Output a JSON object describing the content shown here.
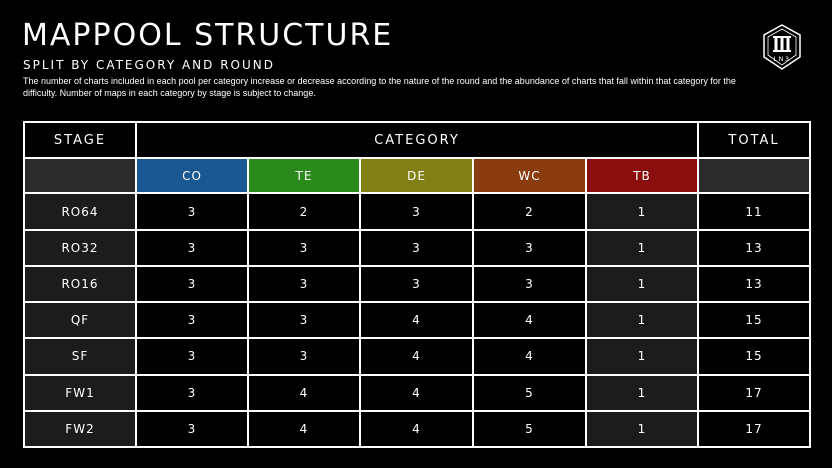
{
  "header": {
    "title": "MAPPOOL STRUCTURE",
    "subtitle": "SPLIT BY CATEGORY AND ROUND",
    "description": "The number of charts included in each pool per category increase or decrease according to the nature of the round and the abundance of charts that fall within that category for the difficulty. Number of maps in each category by stage is subject to change."
  },
  "logo": {
    "text": "LN3",
    "icon": "shield-logo-icon"
  },
  "table": {
    "stage_header": "STAGE",
    "category_header": "CATEGORY",
    "total_header": "TOTAL",
    "categories": [
      {
        "code": "CO",
        "color": "#1a5894"
      },
      {
        "code": "TE",
        "color": "#2b8a1c"
      },
      {
        "code": "DE",
        "color": "#828015"
      },
      {
        "code": "WC",
        "color": "#8a3c10"
      },
      {
        "code": "TB",
        "color": "#8a0e0e"
      }
    ],
    "rows": [
      {
        "stage": "RO64",
        "CO": "3",
        "TE": "2",
        "DE": "3",
        "WC": "2",
        "TB": "1",
        "total": "11"
      },
      {
        "stage": "RO32",
        "CO": "3",
        "TE": "3",
        "DE": "3",
        "WC": "3",
        "TB": "1",
        "total": "13"
      },
      {
        "stage": "RO16",
        "CO": "3",
        "TE": "3",
        "DE": "3",
        "WC": "3",
        "TB": "1",
        "total": "13"
      },
      {
        "stage": "QF",
        "CO": "3",
        "TE": "3",
        "DE": "4",
        "WC": "4",
        "TB": "1",
        "total": "15"
      },
      {
        "stage": "SF",
        "CO": "3",
        "TE": "3",
        "DE": "4",
        "WC": "4",
        "TB": "1",
        "total": "15"
      },
      {
        "stage": "FW1",
        "CO": "3",
        "TE": "4",
        "DE": "4",
        "WC": "5",
        "TB": "1",
        "total": "17"
      },
      {
        "stage": "FW2",
        "CO": "3",
        "TE": "4",
        "DE": "4",
        "WC": "5",
        "TB": "1",
        "total": "17"
      }
    ]
  }
}
